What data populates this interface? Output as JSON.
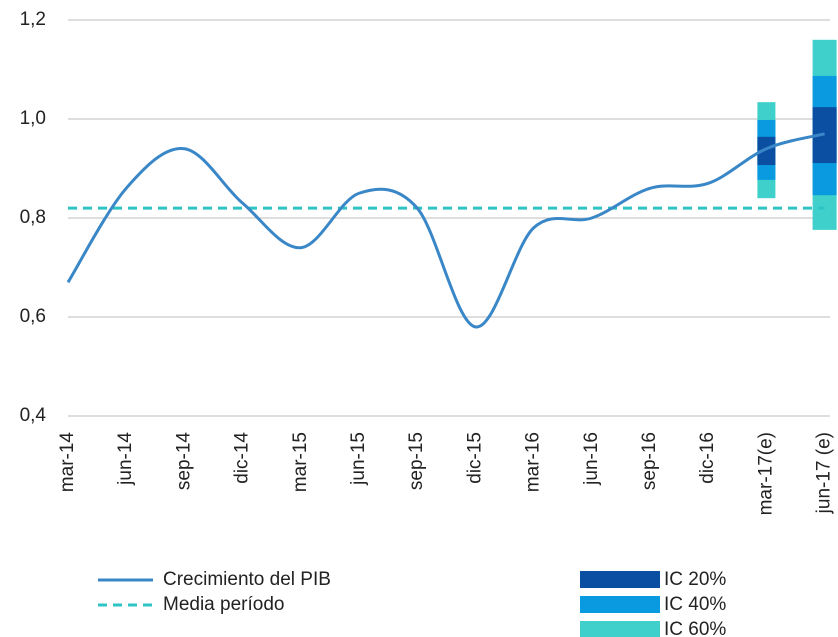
{
  "chart_data": {
    "type": "line",
    "categories": [
      "mar-14",
      "jun-14",
      "sep-14",
      "dic-14",
      "mar-15",
      "jun-15",
      "sep-15",
      "dic-15",
      "mar-16",
      "jun-16",
      "sep-16",
      "dic-16",
      "mar-17(e)",
      "jun-17 (e)"
    ],
    "series": [
      {
        "name": "Crecimiento del PIB",
        "color": "#3a87c8",
        "values": [
          0.67,
          0.86,
          0.94,
          0.83,
          0.74,
          0.85,
          0.82,
          0.58,
          0.78,
          0.8,
          0.86,
          0.87,
          0.94,
          0.97
        ]
      },
      {
        "name": "Media período",
        "color": "#2fc4c4",
        "dashed": true,
        "values": [
          0.82,
          0.82,
          0.82,
          0.82,
          0.82,
          0.82,
          0.82,
          0.82,
          0.82,
          0.82,
          0.82,
          0.82,
          0.82,
          0.82
        ]
      }
    ],
    "bands": [
      {
        "name": "IC 20%",
        "color": "#0b4fa3",
        "low": [
          null,
          null,
          null,
          null,
          null,
          null,
          null,
          null,
          null,
          null,
          null,
          null,
          0.907,
          0.911
        ],
        "high": [
          null,
          null,
          null,
          null,
          null,
          null,
          null,
          null,
          null,
          null,
          null,
          null,
          0.964,
          1.024
        ]
      },
      {
        "name": "IC 40%",
        "color": "#0a9ae0",
        "low": [
          null,
          null,
          null,
          null,
          null,
          null,
          null,
          null,
          null,
          null,
          null,
          null,
          0.877,
          0.846
        ],
        "high": [
          null,
          null,
          null,
          null,
          null,
          null,
          null,
          null,
          null,
          null,
          null,
          null,
          0.998,
          1.087
        ]
      },
      {
        "name": "IC 60%",
        "color": "#3fd0cc",
        "low": [
          null,
          null,
          null,
          null,
          null,
          null,
          null,
          null,
          null,
          null,
          null,
          null,
          0.84,
          0.776
        ],
        "high": [
          null,
          null,
          null,
          null,
          null,
          null,
          null,
          null,
          null,
          null,
          null,
          null,
          1.034,
          1.16
        ]
      }
    ],
    "ylim": [
      0.4,
      1.2
    ],
    "yticks": [
      {
        "value": 0.4,
        "label": "0,4"
      },
      {
        "value": 0.6,
        "label": "0,6"
      },
      {
        "value": 0.8,
        "label": "0,8"
      },
      {
        "value": 1.0,
        "label": "1,0"
      },
      {
        "value": 1.2,
        "label": "1,2"
      }
    ],
    "grid": true
  }
}
